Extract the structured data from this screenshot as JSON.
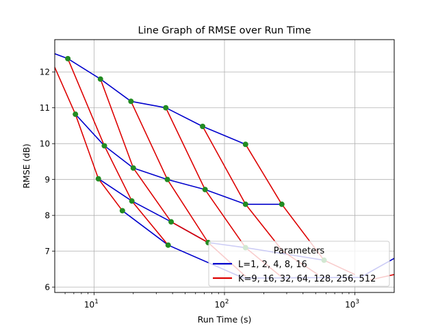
{
  "chart_data": {
    "type": "line",
    "title": "Line Graph of RMSE over Run Time",
    "xlabel": "Run Time (s)",
    "ylabel": "RMSE (dB)",
    "xscale": "log",
    "xlim": [
      5,
      2000
    ],
    "ylim": [
      5.85,
      12.9
    ],
    "xticks": [
      {
        "value": 10,
        "base": "10",
        "exp": "1"
      },
      {
        "value": 100,
        "base": "10",
        "exp": "2"
      },
      {
        "value": 1000,
        "base": "10",
        "exp": "3"
      }
    ],
    "yticks": [
      6,
      7,
      8,
      9,
      10,
      11,
      12
    ],
    "grid": true,
    "legend": {
      "title": "Parameters",
      "placement": "lower-right",
      "entries": [
        "L=1, 2, 4, 8, 16",
        "K=9, 16, 32, 64, 128, 256, 512"
      ]
    },
    "colors": {
      "L_series": "#0000cc",
      "K_series": "#dd0000",
      "marker": "#228b22"
    },
    "series": [
      {
        "group": "L",
        "color": "#0000cc",
        "points": [
          [
            4.5,
            12.57
          ],
          [
            6.3,
            12.37
          ],
          [
            11.2,
            11.8
          ],
          [
            19.2,
            11.18
          ],
          [
            35.5,
            11.0
          ],
          [
            68,
            10.48
          ],
          [
            145,
            9.98
          ]
        ]
      },
      {
        "group": "L",
        "color": "#0000cc",
        "points": [
          [
            7.2,
            10.82
          ],
          [
            12,
            9.94
          ],
          [
            20,
            9.32
          ],
          [
            36.5,
            9.0
          ],
          [
            71,
            8.72
          ],
          [
            145,
            8.31
          ],
          [
            275,
            8.31
          ]
        ]
      },
      {
        "group": "L",
        "color": "#0000cc",
        "points": [
          [
            10.8,
            9.02
          ],
          [
            19.5,
            8.4
          ],
          [
            39,
            7.82
          ],
          [
            75,
            7.24
          ],
          [
            145,
            7.1
          ],
          [
            580,
            6.75
          ]
        ]
      },
      {
        "group": "L",
        "color": "#0000cc",
        "points": [
          [
            16.5,
            8.13
          ],
          [
            37,
            7.17
          ],
          [
            140,
            6.25
          ],
          [
            1100,
            6.27
          ],
          [
            2000,
            6.8
          ]
        ]
      },
      {
        "group": "K",
        "color": "#dd0000",
        "points": [
          [
            4.9,
            12.2
          ],
          [
            7.2,
            10.82
          ],
          [
            10.8,
            9.02
          ],
          [
            16.5,
            8.13
          ]
        ]
      },
      {
        "group": "K",
        "color": "#dd0000",
        "points": [
          [
            6.3,
            12.37
          ],
          [
            12,
            9.94
          ],
          [
            19.5,
            8.4
          ],
          [
            37,
            7.17
          ]
        ]
      },
      {
        "group": "K",
        "color": "#dd0000",
        "points": [
          [
            11.2,
            11.8
          ],
          [
            20,
            9.32
          ],
          [
            39,
            7.82
          ],
          [
            75,
            7.24
          ]
        ]
      },
      {
        "group": "K",
        "color": "#dd0000",
        "points": [
          [
            19.2,
            11.18
          ],
          [
            36.5,
            9.0
          ],
          [
            75,
            7.24
          ],
          [
            145,
            6.3
          ]
        ]
      },
      {
        "group": "K",
        "color": "#dd0000",
        "points": [
          [
            35.5,
            11.0
          ],
          [
            71,
            8.72
          ],
          [
            145,
            7.1
          ],
          [
            270,
            6.3
          ]
        ]
      },
      {
        "group": "K",
        "color": "#dd0000",
        "points": [
          [
            68,
            10.48
          ],
          [
            145,
            8.31
          ],
          [
            280,
            7.0
          ],
          [
            520,
            6.35
          ]
        ]
      },
      {
        "group": "K",
        "color": "#dd0000",
        "points": [
          [
            145,
            9.98
          ],
          [
            275,
            8.31
          ],
          [
            580,
            6.75
          ],
          [
            1000,
            6.35
          ]
        ]
      },
      {
        "group": "K",
        "color": "#dd0000",
        "points": [
          [
            1300,
            6.2
          ],
          [
            2000,
            6.35
          ]
        ]
      }
    ],
    "markers": [
      [
        6.3,
        12.37
      ],
      [
        11.2,
        11.8
      ],
      [
        19.2,
        11.18
      ],
      [
        35.5,
        11.0
      ],
      [
        68,
        10.48
      ],
      [
        145,
        9.98
      ],
      [
        7.2,
        10.82
      ],
      [
        12,
        9.94
      ],
      [
        20,
        9.32
      ],
      [
        36.5,
        9.0
      ],
      [
        71,
        8.72
      ],
      [
        145,
        8.31
      ],
      [
        275,
        8.31
      ],
      [
        10.8,
        9.02
      ],
      [
        19.5,
        8.4
      ],
      [
        39,
        7.82
      ],
      [
        75,
        7.24
      ],
      [
        145,
        7.1
      ],
      [
        580,
        6.75
      ],
      [
        16.5,
        8.13
      ],
      [
        37,
        7.17
      ]
    ]
  }
}
